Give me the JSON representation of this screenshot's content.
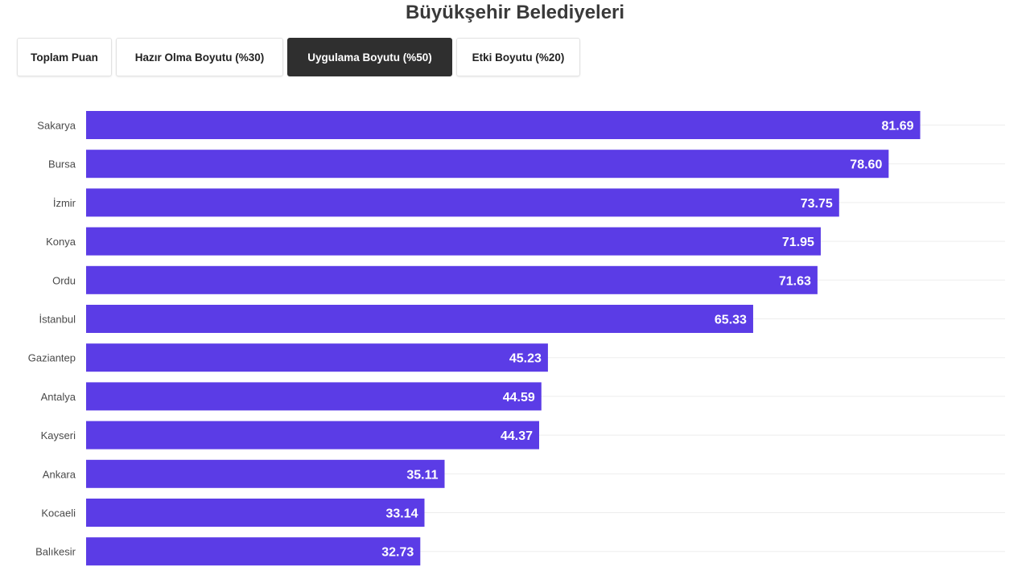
{
  "header": {
    "title": "Büyükşehir Belediyeleri"
  },
  "tabs": [
    {
      "label": "Toplam Puan",
      "active": false
    },
    {
      "label": "Hazır Olma Boyutu (%30)",
      "active": false
    },
    {
      "label": "Uygulama Boyutu (%50)",
      "active": true
    },
    {
      "label": "Etki Boyutu (%20)",
      "active": false
    }
  ],
  "colors": {
    "bar": "#5b3ce6",
    "active_tab": "#2f2f2f"
  },
  "chart_data": {
    "type": "bar",
    "orientation": "horizontal",
    "title": "Büyükşehir Belediyeleri",
    "categories": [
      "Sakarya",
      "Bursa",
      "İzmir",
      "Konya",
      "Ordu",
      "İstanbul",
      "Gaziantep",
      "Antalya",
      "Kayseri",
      "Ankara",
      "Kocaeli",
      "Balıkesir"
    ],
    "values": [
      81.69,
      78.6,
      73.75,
      71.95,
      71.63,
      65.33,
      45.23,
      44.59,
      44.37,
      35.11,
      33.14,
      32.73
    ],
    "xlim": [
      0,
      90
    ],
    "grid": true,
    "data_labels": true
  }
}
